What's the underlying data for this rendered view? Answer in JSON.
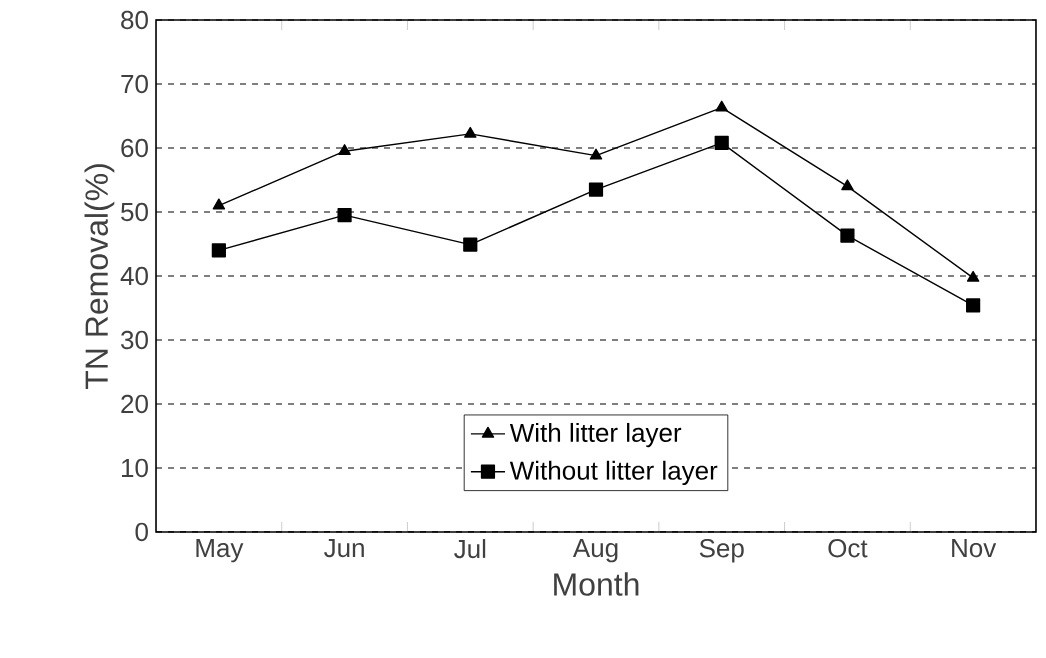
{
  "chart_data": {
    "type": "line",
    "xlabel": "Month",
    "ylabel": "TN Removal(%)",
    "categories": [
      "May",
      "Jun",
      "Jul",
      "Aug",
      "Sep",
      "Oct",
      "Nov"
    ],
    "series": [
      {
        "name": "With litter layer",
        "color": "#000000",
        "marker": "triangle",
        "values": [
          51,
          59.5,
          62.2,
          58.8,
          66.3,
          54,
          39.7
        ]
      },
      {
        "name": "Without litter layer",
        "color": "#000000",
        "marker": "square",
        "values": [
          44,
          49.5,
          44.9,
          53.5,
          60.8,
          46.3,
          35.4
        ]
      }
    ],
    "ylim": [
      0,
      80
    ],
    "yticks": [
      0,
      10,
      20,
      30,
      40,
      50,
      60,
      70,
      80
    ],
    "grid": "y",
    "legend": "bottom",
    "line_style": "solid"
  }
}
